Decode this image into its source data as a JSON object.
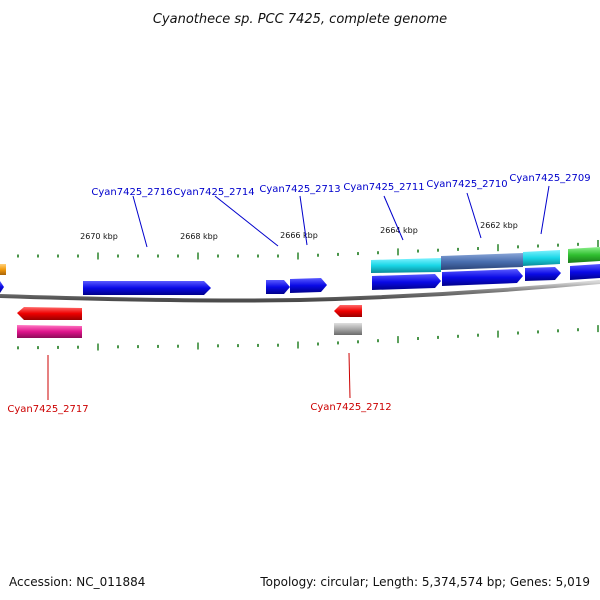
{
  "title": "Cyanothece sp. PCC 7425, complete genome",
  "footer": {
    "accession": "Accession: NC_011884",
    "summary": "Topology: circular; Length: 5,374,574 bp; Genes: 5,019"
  },
  "scale_labels": [
    "2670 kbp",
    "2668 kbp",
    "2666 kbp",
    "2664 kbp",
    "2662 kbp"
  ],
  "gene_labels": {
    "top": [
      "Cyan7425_2716",
      "Cyan7425_2714",
      "Cyan7425_2713",
      "Cyan7425_2711",
      "Cyan7425_2710",
      "Cyan7425_2709"
    ],
    "bottom": [
      "Cyan7425_2717",
      "Cyan7425_2712"
    ]
  },
  "colors": {
    "forward_label": "#0000cc",
    "reverse_label": "#cc0000",
    "gene_blue": "#0a0ae6",
    "gene_cyan": "#19d6e6",
    "gene_steel": "#4a6fb0",
    "gene_red": "#ee0000",
    "gene_magenta": "#e0148c",
    "gene_gray": "#a8a8a8",
    "gene_green": "#2fbf2f",
    "gene_orange": "#f29a0c",
    "tick": "#1a7a1a",
    "backbone": "#7a7a7a"
  }
}
